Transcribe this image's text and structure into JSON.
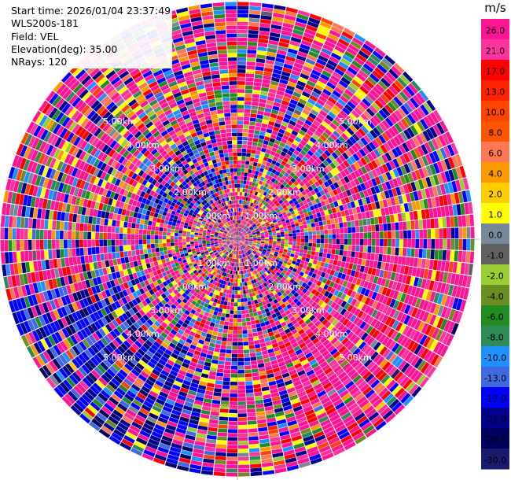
{
  "header": {
    "start_time": "Start time: 2026/01/04 23:37:49",
    "site": "WLS200s-181",
    "field": "Field: VEL",
    "elevation": "Elevation(deg): 35.00",
    "nrays": "NRays: 120"
  },
  "chart_data": {
    "type": "heatmap",
    "projection": "polar-ppi",
    "nrays": 120,
    "range_rings_km": [
      1,
      2,
      3,
      4,
      5
    ],
    "ring_labels": [
      "1.00km",
      "2.00km",
      "3.00km",
      "4.00km",
      "5.00km"
    ],
    "colorbar": {
      "unit": "m/s",
      "ticks": [
        "26.0",
        "21.0",
        "17.0",
        "13.0",
        "10.0",
        "8.0",
        "6.0",
        "4.0",
        "2.0",
        "1.0",
        "0.0",
        "-1.0",
        "-2.0",
        "-4.0",
        "-6.0",
        "-8.0",
        "-10.0",
        "-13.0",
        "-17.0",
        "-21.0",
        "-26.0",
        "-30.0"
      ],
      "colors": [
        "#ff1493",
        "#ff33a0",
        "#ff0000",
        "#ff2200",
        "#ff4400",
        "#ff5500",
        "#ff7755",
        "#ff9900",
        "#ffcc00",
        "#ffff00",
        "#778899",
        "#606060",
        "#9acd32",
        "#6b8e23",
        "#228b22",
        "#2e8b57",
        "#1e90ff",
        "#4169e1",
        "#0000ff",
        "#00008b",
        "#000060",
        "#1a1a6e"
      ]
    }
  }
}
